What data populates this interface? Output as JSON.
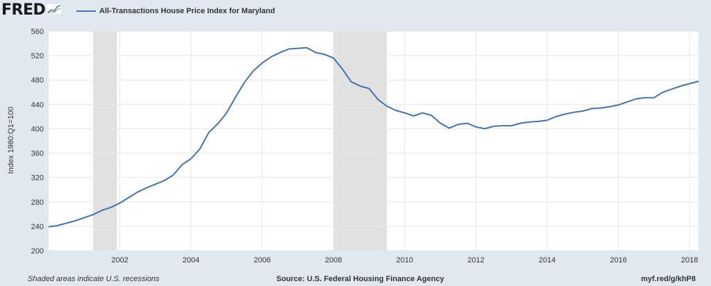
{
  "header": {
    "logo_text": "FRED",
    "legend_label": "All-Transactions House Price Index for Maryland"
  },
  "footer": {
    "note": "Shaded areas indicate U.S. recessions",
    "source": "Source: U.S. Federal Housing Finance Agency",
    "url": "myf.red/g/khP8"
  },
  "colors": {
    "line": "#4572a7",
    "recession": "#e1e1e1",
    "plot_bg": "#ffffff",
    "page_bg": "#e1e9f0",
    "grid": "#e6e6e6"
  },
  "chart_data": {
    "type": "line",
    "title": "",
    "ylabel": "Index 1980:Q1=100",
    "xlabel": "",
    "ylim": [
      200,
      560
    ],
    "xlim": [
      2000.0,
      2018.25
    ],
    "yticks": [
      200,
      240,
      280,
      320,
      360,
      400,
      440,
      480,
      520,
      560
    ],
    "xticks": [
      2002,
      2004,
      2006,
      2008,
      2010,
      2012,
      2014,
      2016,
      2018
    ],
    "grid": true,
    "legend": "top-left",
    "recessions": [
      [
        2001.25,
        2001.92
      ],
      [
        2008.0,
        2009.5
      ]
    ],
    "series": [
      {
        "name": "All-Transactions House Price Index for Maryland",
        "x": [
          2000.0,
          2000.25,
          2000.5,
          2000.75,
          2001.0,
          2001.25,
          2001.5,
          2001.75,
          2002.0,
          2002.25,
          2002.5,
          2002.75,
          2003.0,
          2003.25,
          2003.5,
          2003.75,
          2004.0,
          2004.25,
          2004.5,
          2004.75,
          2005.0,
          2005.25,
          2005.5,
          2005.75,
          2006.0,
          2006.25,
          2006.5,
          2006.75,
          2007.0,
          2007.25,
          2007.5,
          2007.75,
          2008.0,
          2008.25,
          2008.5,
          2008.75,
          2009.0,
          2009.25,
          2009.5,
          2009.75,
          2010.0,
          2010.25,
          2010.5,
          2010.75,
          2011.0,
          2011.25,
          2011.5,
          2011.75,
          2012.0,
          2012.25,
          2012.5,
          2012.75,
          2013.0,
          2013.25,
          2013.5,
          2013.75,
          2014.0,
          2014.25,
          2014.5,
          2014.75,
          2015.0,
          2015.25,
          2015.5,
          2015.75,
          2016.0,
          2016.25,
          2016.5,
          2016.75,
          2017.0,
          2017.25,
          2017.5,
          2017.75,
          2018.0,
          2018.25
        ],
        "values": [
          239,
          241,
          245,
          249,
          254,
          259,
          266,
          271,
          278,
          287,
          296,
          303,
          309,
          315,
          324,
          341,
          351,
          367,
          394,
          408,
          426,
          452,
          476,
          495,
          508,
          518,
          525,
          531,
          532,
          533,
          525,
          522,
          516,
          498,
          477,
          470,
          466,
          448,
          437,
          430,
          426,
          421,
          426,
          422,
          409,
          401,
          407,
          409,
          403,
          400,
          404,
          405,
          405,
          409,
          411,
          412,
          414,
          420,
          424,
          427,
          429,
          433,
          434,
          436,
          439,
          444,
          449,
          451,
          451,
          460,
          465,
          470,
          474,
          478
        ]
      }
    ]
  }
}
